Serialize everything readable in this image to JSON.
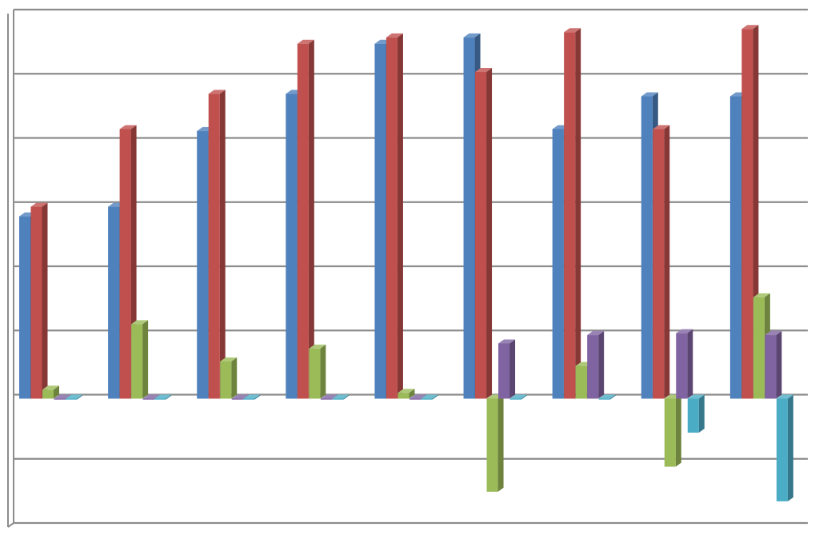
{
  "chart_data": {
    "type": "bar",
    "style": "3d-clustered-column",
    "title": "",
    "xlabel": "",
    "ylabel": "",
    "grid": true,
    "legend": "none",
    "ylim": [
      -2,
      6
    ],
    "categories": [
      "",
      "",
      "",
      "",
      "",
      "",
      "",
      "",
      ""
    ],
    "series": [
      {
        "color": "#4F81BD",
        "values": [
          2.84,
          2.99,
          4.17,
          4.75,
          5.53,
          5.63,
          4.2,
          4.71,
          4.71
        ]
      },
      {
        "color": "#C0504D",
        "values": [
          2.99,
          4.2,
          4.75,
          5.53,
          5.63,
          5.09,
          5.71,
          4.2,
          5.76
        ]
      },
      {
        "color": "#9BBB59",
        "values": [
          0.14,
          1.16,
          0.58,
          0.78,
          0.09,
          -1.45,
          0.51,
          -1.06,
          1.58
        ]
      },
      {
        "color": "#8064A2",
        "values": [
          0,
          0,
          0,
          0,
          0,
          0.86,
          0.99,
          1.02,
          0.99
        ]
      },
      {
        "color": "#4BACC6",
        "values": [
          0,
          0,
          0,
          0,
          0,
          0,
          0,
          -0.53,
          -1.6
        ]
      }
    ]
  }
}
